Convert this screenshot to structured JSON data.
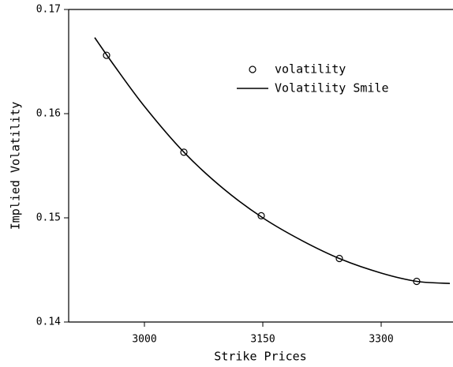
{
  "chart_data": {
    "type": "scatter",
    "xlabel": "Strike Prices",
    "ylabel": "Implied Volatility",
    "xlim": [
      2904,
      3390
    ],
    "ylim": [
      0.14,
      0.17
    ],
    "xticks": [
      3000,
      3150,
      3300
    ],
    "yticks": [
      0.14,
      0.15,
      0.16,
      0.17
    ],
    "legend": "upper right",
    "series": [
      {
        "name": "volatility",
        "style": "markers",
        "color": "#000000",
        "x": [
          2952,
          3050,
          3148,
          3247,
          3345
        ],
        "values": [
          0.1656,
          0.1563,
          0.1502,
          0.1461,
          0.1439
        ]
      },
      {
        "name": "Volatility Smile",
        "style": "line",
        "color": "#000000",
        "x": [
          2937,
          2960,
          3000,
          3050,
          3100,
          3150,
          3200,
          3250,
          3300,
          3345,
          3387
        ],
        "values": [
          0.1673,
          0.1648,
          0.1607,
          0.1563,
          0.1528,
          0.15,
          0.1478,
          0.146,
          0.1447,
          0.1439,
          0.1437
        ]
      }
    ]
  }
}
